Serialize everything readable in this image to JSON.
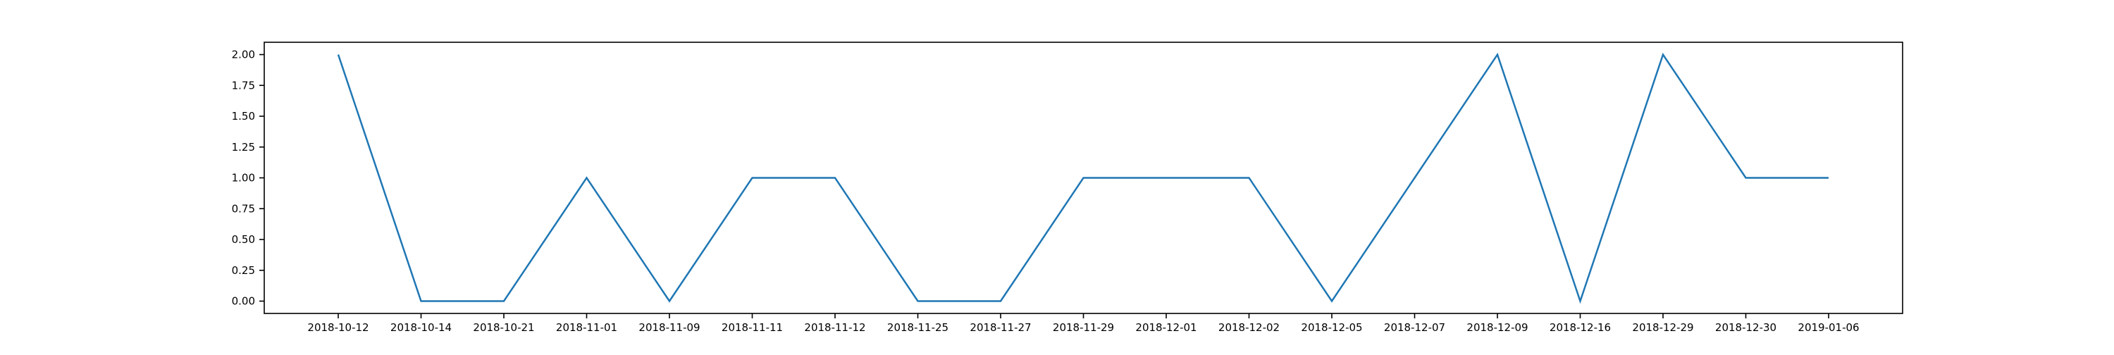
{
  "chart_data": {
    "type": "line",
    "title": "",
    "xlabel": "",
    "ylabel": "",
    "x": [
      "2018-10-12",
      "2018-10-14",
      "2018-10-21",
      "2018-11-01",
      "2018-11-09",
      "2018-11-11",
      "2018-11-12",
      "2018-11-25",
      "2018-11-27",
      "2018-11-29",
      "2018-12-01",
      "2018-12-02",
      "2018-12-05",
      "2018-12-07",
      "2018-12-09",
      "2018-12-16",
      "2018-12-29",
      "2018-12-30",
      "2019-01-06"
    ],
    "series": [
      {
        "values": [
          2,
          0,
          0,
          1,
          0,
          1,
          1,
          0,
          0,
          1,
          1,
          1,
          0,
          1,
          2,
          0,
          2,
          1,
          1
        ],
        "color": "#1f77b4"
      }
    ],
    "ylim": [
      -0.1,
      2.1
    ],
    "yticks": [
      "0.00",
      "0.25",
      "0.50",
      "0.75",
      "1.00",
      "1.25",
      "1.50",
      "1.75",
      "2.00"
    ],
    "grid": false
  }
}
